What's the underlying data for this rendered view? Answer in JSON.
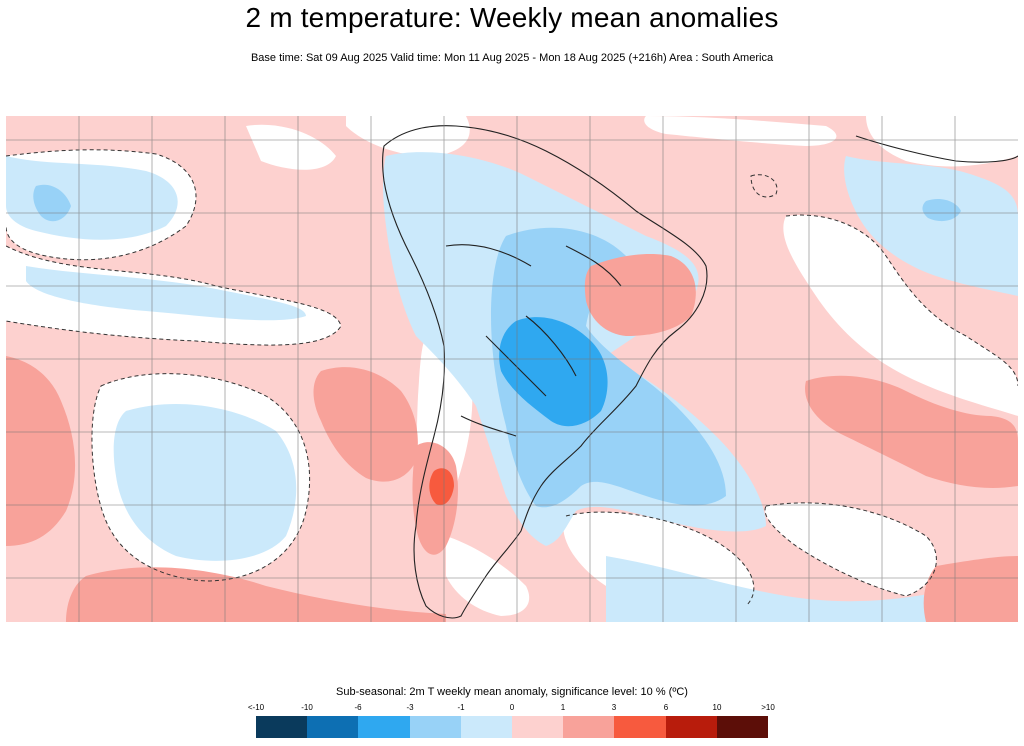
{
  "header": {
    "title": "2 m temperature: Weekly mean anomalies",
    "subtitle": "Base time: Sat 09 Aug 2025 Valid time: Mon 11 Aug 2025 - Mon 18 Aug 2025 (+216h) Area : South America"
  },
  "map": {
    "region": "South America",
    "variable": "2m temperature weekly mean anomaly"
  },
  "legend": {
    "title": "Sub-seasonal: 2m T weekly mean anomaly, significance level: 10 % (ºC)",
    "ticks": [
      "<-10",
      "-10",
      "-6",
      "-3",
      "-1",
      "0",
      "1",
      "3",
      "6",
      "10",
      ">10"
    ],
    "colors": [
      "#0a3a5c",
      "#0d6fb3",
      "#2fa8f0",
      "#98d2f7",
      "#cbe9fb",
      "#fdd1cf",
      "#f8a29a",
      "#f75a3e",
      "#b81c0c",
      "#5c0e08"
    ]
  }
}
